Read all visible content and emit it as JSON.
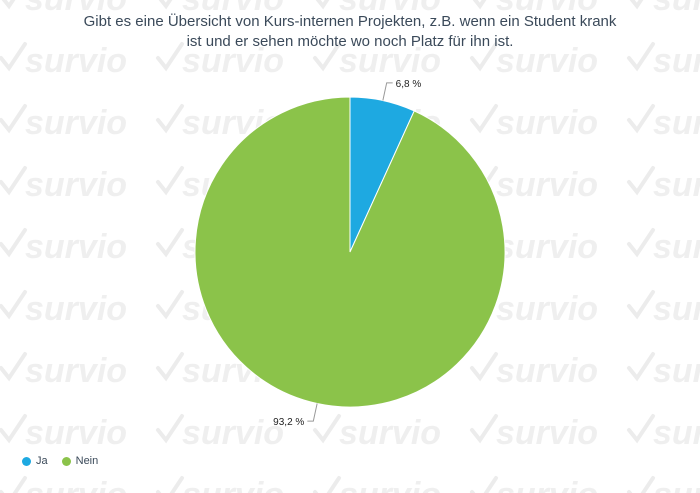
{
  "brand": {
    "watermark_text": "survio"
  },
  "title_lines": [
    "Gibt es eine Übersicht von Kurs-internen Projekten, z.B. wenn ein Student krank",
    "ist und er sehen möchte wo noch Platz für ihn ist."
  ],
  "chart_data": {
    "type": "pie",
    "title": "Gibt es eine Übersicht von Kurs-internen Projekten, z.B. wenn ein Student krank ist und er sehen möchte wo noch Platz für ihn ist.",
    "slices": [
      {
        "label": "Ja",
        "value": 6.8,
        "display": "6,8 %",
        "color": "#1ea9e1"
      },
      {
        "label": "Nein",
        "value": 93.2,
        "display": "93,2 %",
        "color": "#8bc34a"
      }
    ],
    "legend_position": "bottom-left"
  }
}
